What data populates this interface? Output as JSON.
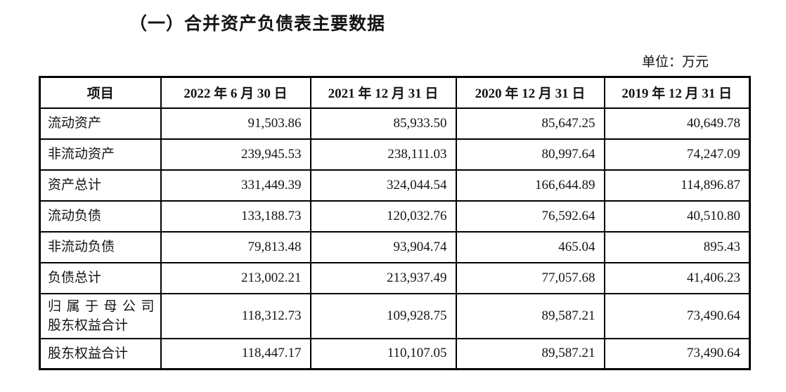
{
  "page": {
    "title": "（一）合并资产负债表主要数据",
    "unit_label": "单位：万元"
  },
  "table": {
    "headers": [
      "项目",
      "2022 年 6 月 30 日",
      "2021 年 12 月 31 日",
      "2020 年 12 月 31 日",
      "2019 年 12 月 31 日"
    ],
    "rows": [
      {
        "label": "流动资产",
        "values": [
          "91,503.86",
          "85,933.50",
          "85,647.25",
          "40,649.78"
        ]
      },
      {
        "label": "非流动资产",
        "values": [
          "239,945.53",
          "238,111.03",
          "80,997.64",
          "74,247.09"
        ]
      },
      {
        "label": "资产总计",
        "values": [
          "331,449.39",
          "324,044.54",
          "166,644.89",
          "114,896.87"
        ]
      },
      {
        "label": "流动负债",
        "values": [
          "133,188.73",
          "120,032.76",
          "76,592.64",
          "40,510.80"
        ]
      },
      {
        "label": "非流动负债",
        "values": [
          "79,813.48",
          "93,904.74",
          "465.04",
          "895.43"
        ]
      },
      {
        "label": "负债总计",
        "values": [
          "213,002.21",
          "213,937.49",
          "77,057.68",
          "41,406.23"
        ]
      },
      {
        "label": "归属于母公司\n股东权益合计",
        "values": [
          "118,312.73",
          "109,928.75",
          "89,587.21",
          "73,490.64"
        ]
      },
      {
        "label": "股东权益合计",
        "values": [
          "118,447.17",
          "110,107.05",
          "89,587.21",
          "73,490.64"
        ]
      }
    ]
  }
}
